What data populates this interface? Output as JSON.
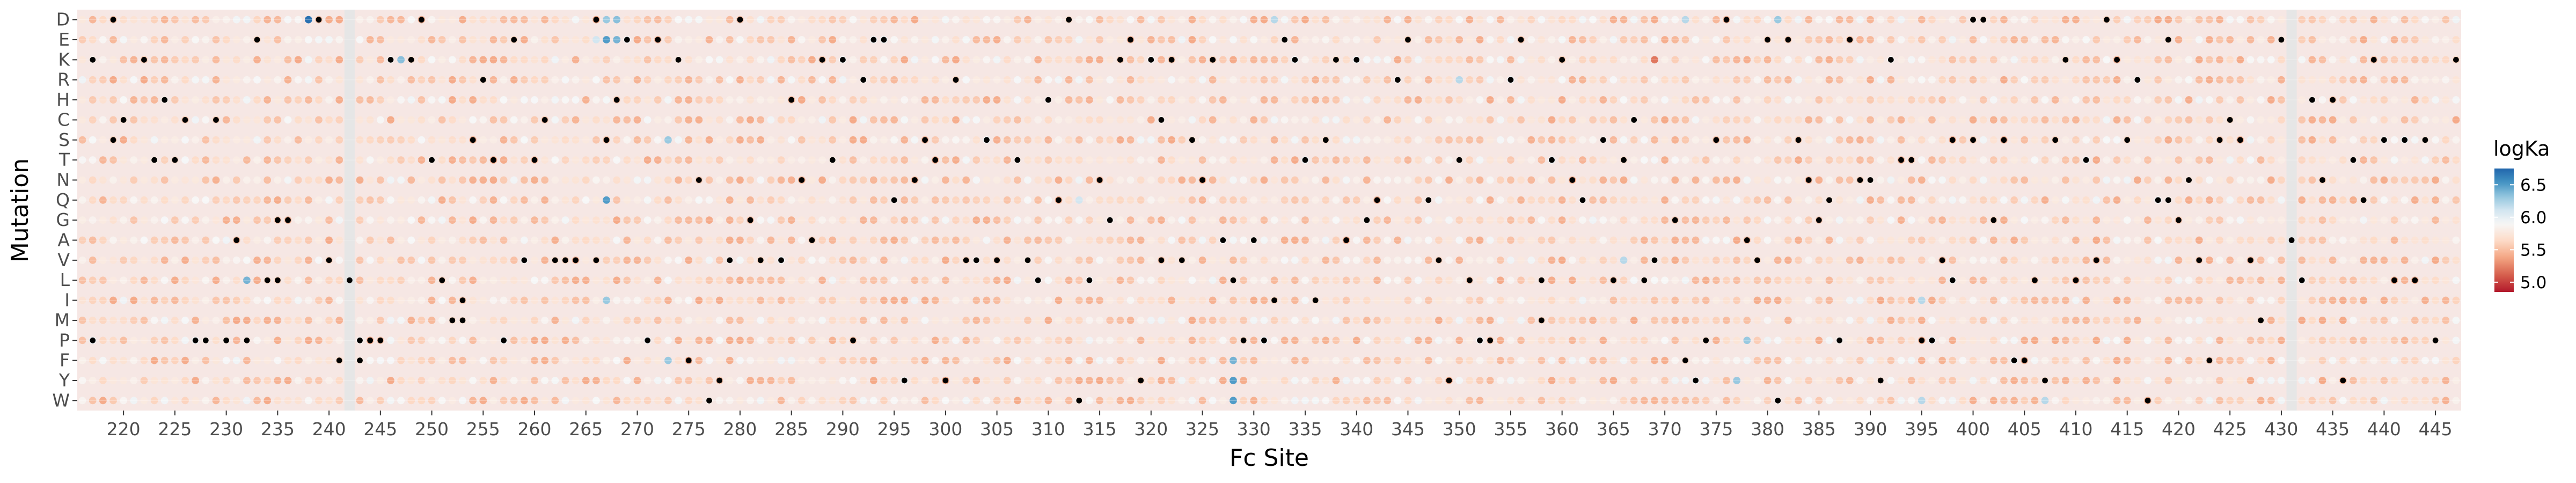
{
  "chart_data": {
    "type": "heatmap",
    "xlabel": "Fc Site",
    "ylabel": "Mutation",
    "x_range": [
      216,
      447
    ],
    "x_ticks": [
      220,
      225,
      230,
      235,
      240,
      245,
      250,
      255,
      260,
      265,
      270,
      275,
      280,
      285,
      290,
      295,
      300,
      305,
      310,
      315,
      320,
      325,
      330,
      335,
      340,
      345,
      350,
      355,
      360,
      365,
      370,
      375,
      380,
      385,
      390,
      395,
      400,
      405,
      410,
      415,
      420,
      425,
      430,
      435,
      440,
      445
    ],
    "y_categories": [
      "D",
      "E",
      "K",
      "R",
      "H",
      "C",
      "S",
      "T",
      "N",
      "Q",
      "G",
      "A",
      "V",
      "L",
      "I",
      "M",
      "P",
      "F",
      "Y",
      "W"
    ],
    "grid": true,
    "background_value": 5.7,
    "missing_sites": [
      242,
      431
    ],
    "notable_cells": [
      {
        "site": 238,
        "mutation": "D",
        "logKa": 6.7
      },
      {
        "site": 267,
        "mutation": "D",
        "logKa": 6.3
      },
      {
        "site": 268,
        "mutation": "D",
        "logKa": 6.35
      },
      {
        "site": 267,
        "mutation": "E",
        "logKa": 6.5
      },
      {
        "site": 268,
        "mutation": "E",
        "logKa": 6.4
      },
      {
        "site": 266,
        "mutation": "E",
        "logKa": 6.1
      },
      {
        "site": 237,
        "mutation": "K",
        "logKa": 5.4
      },
      {
        "site": 247,
        "mutation": "K",
        "logKa": 6.35
      },
      {
        "site": 369,
        "mutation": "K",
        "logKa": 5.2
      },
      {
        "site": 273,
        "mutation": "S",
        "logKa": 6.3
      },
      {
        "site": 271,
        "mutation": "T",
        "logKa": 5.4
      },
      {
        "site": 267,
        "mutation": "Q",
        "logKa": 6.5
      },
      {
        "site": 232,
        "mutation": "L",
        "logKa": 6.4
      },
      {
        "site": 276,
        "mutation": "I",
        "logKa": 5.4
      },
      {
        "site": 267,
        "mutation": "I",
        "logKa": 6.3
      },
      {
        "site": 273,
        "mutation": "F",
        "logKa": 6.3
      },
      {
        "site": 328,
        "mutation": "F",
        "logKa": 6.4
      },
      {
        "site": 328,
        "mutation": "Y",
        "logKa": 6.5
      },
      {
        "site": 328,
        "mutation": "W",
        "logKa": 6.5
      },
      {
        "site": 378,
        "mutation": "P",
        "logKa": 6.3
      },
      {
        "site": 332,
        "mutation": "D",
        "logKa": 6.2
      },
      {
        "site": 381,
        "mutation": "D",
        "logKa": 6.3
      },
      {
        "site": 372,
        "mutation": "D",
        "logKa": 6.2
      },
      {
        "site": 366,
        "mutation": "V",
        "logKa": 6.2
      },
      {
        "site": 395,
        "mutation": "W",
        "logKa": 6.2
      },
      {
        "site": 407,
        "mutation": "W",
        "logKa": 6.2
      },
      {
        "site": 377,
        "mutation": "Y",
        "logKa": 6.3
      },
      {
        "site": 395,
        "mutation": "I",
        "logKa": 6.2
      },
      {
        "site": 350,
        "mutation": "R",
        "logKa": 6.2
      },
      {
        "site": 313,
        "mutation": "Q",
        "logKa": 6.1
      }
    ],
    "wildtype_markers": [
      {
        "site": 219,
        "mutation": "D"
      },
      {
        "site": 239,
        "mutation": "D"
      },
      {
        "site": 249,
        "mutation": "D"
      },
      {
        "site": 266,
        "mutation": "D"
      },
      {
        "site": 280,
        "mutation": "D"
      },
      {
        "site": 312,
        "mutation": "D"
      },
      {
        "site": 376,
        "mutation": "D"
      },
      {
        "site": 400,
        "mutation": "D"
      },
      {
        "site": 401,
        "mutation": "D"
      },
      {
        "site": 413,
        "mutation": "D"
      },
      {
        "site": 233,
        "mutation": "E"
      },
      {
        "site": 258,
        "mutation": "E"
      },
      {
        "site": 269,
        "mutation": "E"
      },
      {
        "site": 272,
        "mutation": "E"
      },
      {
        "site": 293,
        "mutation": "E"
      },
      {
        "site": 294,
        "mutation": "E"
      },
      {
        "site": 318,
        "mutation": "E"
      },
      {
        "site": 333,
        "mutation": "E"
      },
      {
        "site": 345,
        "mutation": "E"
      },
      {
        "site": 356,
        "mutation": "E"
      },
      {
        "site": 380,
        "mutation": "E"
      },
      {
        "site": 382,
        "mutation": "E"
      },
      {
        "site": 388,
        "mutation": "E"
      },
      {
        "site": 419,
        "mutation": "E"
      },
      {
        "site": 430,
        "mutation": "E"
      },
      {
        "site": 217,
        "mutation": "K"
      },
      {
        "site": 222,
        "mutation": "K"
      },
      {
        "site": 246,
        "mutation": "K"
      },
      {
        "site": 248,
        "mutation": "K"
      },
      {
        "site": 274,
        "mutation": "K"
      },
      {
        "site": 288,
        "mutation": "K"
      },
      {
        "site": 290,
        "mutation": "K"
      },
      {
        "site": 317,
        "mutation": "K"
      },
      {
        "site": 320,
        "mutation": "K"
      },
      {
        "site": 322,
        "mutation": "K"
      },
      {
        "site": 326,
        "mutation": "K"
      },
      {
        "site": 334,
        "mutation": "K"
      },
      {
        "site": 338,
        "mutation": "K"
      },
      {
        "site": 340,
        "mutation": "K"
      },
      {
        "site": 360,
        "mutation": "K"
      },
      {
        "site": 392,
        "mutation": "K"
      },
      {
        "site": 409,
        "mutation": "K"
      },
      {
        "site": 414,
        "mutation": "K"
      },
      {
        "site": 439,
        "mutation": "K"
      },
      {
        "site": 447,
        "mutation": "K"
      },
      {
        "site": 255,
        "mutation": "R"
      },
      {
        "site": 292,
        "mutation": "R"
      },
      {
        "site": 301,
        "mutation": "R"
      },
      {
        "site": 344,
        "mutation": "R"
      },
      {
        "site": 355,
        "mutation": "R"
      },
      {
        "site": 416,
        "mutation": "R"
      },
      {
        "site": 224,
        "mutation": "H"
      },
      {
        "site": 268,
        "mutation": "H"
      },
      {
        "site": 285,
        "mutation": "H"
      },
      {
        "site": 310,
        "mutation": "H"
      },
      {
        "site": 433,
        "mutation": "H"
      },
      {
        "site": 435,
        "mutation": "H"
      },
      {
        "site": 220,
        "mutation": "C"
      },
      {
        "site": 226,
        "mutation": "C"
      },
      {
        "site": 229,
        "mutation": "C"
      },
      {
        "site": 261,
        "mutation": "C"
      },
      {
        "site": 321,
        "mutation": "C"
      },
      {
        "site": 367,
        "mutation": "C"
      },
      {
        "site": 425,
        "mutation": "C"
      },
      {
        "site": 219,
        "mutation": "S"
      },
      {
        "site": 254,
        "mutation": "S"
      },
      {
        "site": 267,
        "mutation": "S"
      },
      {
        "site": 298,
        "mutation": "S"
      },
      {
        "site": 304,
        "mutation": "S"
      },
      {
        "site": 324,
        "mutation": "S"
      },
      {
        "site": 337,
        "mutation": "S"
      },
      {
        "site": 364,
        "mutation": "S"
      },
      {
        "site": 375,
        "mutation": "S"
      },
      {
        "site": 383,
        "mutation": "S"
      },
      {
        "site": 398,
        "mutation": "S"
      },
      {
        "site": 400,
        "mutation": "S"
      },
      {
        "site": 403,
        "mutation": "S"
      },
      {
        "site": 408,
        "mutation": "S"
      },
      {
        "site": 415,
        "mutation": "S"
      },
      {
        "site": 424,
        "mutation": "S"
      },
      {
        "site": 426,
        "mutation": "S"
      },
      {
        "site": 440,
        "mutation": "S"
      },
      {
        "site": 442,
        "mutation": "S"
      },
      {
        "site": 444,
        "mutation": "S"
      },
      {
        "site": 223,
        "mutation": "T"
      },
      {
        "site": 225,
        "mutation": "T"
      },
      {
        "site": 250,
        "mutation": "T"
      },
      {
        "site": 256,
        "mutation": "T"
      },
      {
        "site": 260,
        "mutation": "T"
      },
      {
        "site": 289,
        "mutation": "T"
      },
      {
        "site": 299,
        "mutation": "T"
      },
      {
        "site": 307,
        "mutation": "T"
      },
      {
        "site": 335,
        "mutation": "T"
      },
      {
        "site": 350,
        "mutation": "T"
      },
      {
        "site": 359,
        "mutation": "T"
      },
      {
        "site": 366,
        "mutation": "T"
      },
      {
        "site": 393,
        "mutation": "T"
      },
      {
        "site": 394,
        "mutation": "T"
      },
      {
        "site": 411,
        "mutation": "T"
      },
      {
        "site": 437,
        "mutation": "T"
      },
      {
        "site": 276,
        "mutation": "N"
      },
      {
        "site": 286,
        "mutation": "N"
      },
      {
        "site": 297,
        "mutation": "N"
      },
      {
        "site": 315,
        "mutation": "N"
      },
      {
        "site": 325,
        "mutation": "N"
      },
      {
        "site": 361,
        "mutation": "N"
      },
      {
        "site": 384,
        "mutation": "N"
      },
      {
        "site": 389,
        "mutation": "N"
      },
      {
        "site": 390,
        "mutation": "N"
      },
      {
        "site": 421,
        "mutation": "N"
      },
      {
        "site": 434,
        "mutation": "N"
      },
      {
        "site": 295,
        "mutation": "Q"
      },
      {
        "site": 311,
        "mutation": "Q"
      },
      {
        "site": 342,
        "mutation": "Q"
      },
      {
        "site": 347,
        "mutation": "Q"
      },
      {
        "site": 362,
        "mutation": "Q"
      },
      {
        "site": 386,
        "mutation": "Q"
      },
      {
        "site": 418,
        "mutation": "Q"
      },
      {
        "site": 419,
        "mutation": "Q"
      },
      {
        "site": 438,
        "mutation": "Q"
      },
      {
        "site": 235,
        "mutation": "G"
      },
      {
        "site": 236,
        "mutation": "G"
      },
      {
        "site": 281,
        "mutation": "G"
      },
      {
        "site": 316,
        "mutation": "G"
      },
      {
        "site": 341,
        "mutation": "G"
      },
      {
        "site": 371,
        "mutation": "G"
      },
      {
        "site": 385,
        "mutation": "G"
      },
      {
        "site": 402,
        "mutation": "G"
      },
      {
        "site": 420,
        "mutation": "G"
      },
      {
        "site": 231,
        "mutation": "A"
      },
      {
        "site": 287,
        "mutation": "A"
      },
      {
        "site": 327,
        "mutation": "A"
      },
      {
        "site": 330,
        "mutation": "A"
      },
      {
        "site": 339,
        "mutation": "A"
      },
      {
        "site": 378,
        "mutation": "A"
      },
      {
        "site": 431,
        "mutation": "A"
      },
      {
        "site": 240,
        "mutation": "V"
      },
      {
        "site": 259,
        "mutation": "V"
      },
      {
        "site": 262,
        "mutation": "V"
      },
      {
        "site": 263,
        "mutation": "V"
      },
      {
        "site": 264,
        "mutation": "V"
      },
      {
        "site": 266,
        "mutation": "V"
      },
      {
        "site": 279,
        "mutation": "V"
      },
      {
        "site": 282,
        "mutation": "V"
      },
      {
        "site": 284,
        "mutation": "V"
      },
      {
        "site": 302,
        "mutation": "V"
      },
      {
        "site": 303,
        "mutation": "V"
      },
      {
        "site": 305,
        "mutation": "V"
      },
      {
        "site": 308,
        "mutation": "V"
      },
      {
        "site": 321,
        "mutation": "V"
      },
      {
        "site": 323,
        "mutation": "V"
      },
      {
        "site": 348,
        "mutation": "V"
      },
      {
        "site": 369,
        "mutation": "V"
      },
      {
        "site": 379,
        "mutation": "V"
      },
      {
        "site": 397,
        "mutation": "V"
      },
      {
        "site": 412,
        "mutation": "V"
      },
      {
        "site": 422,
        "mutation": "V"
      },
      {
        "site": 427,
        "mutation": "V"
      },
      {
        "site": 234,
        "mutation": "L"
      },
      {
        "site": 235,
        "mutation": "L"
      },
      {
        "site": 242,
        "mutation": "L"
      },
      {
        "site": 251,
        "mutation": "L"
      },
      {
        "site": 309,
        "mutation": "L"
      },
      {
        "site": 314,
        "mutation": "L"
      },
      {
        "site": 328,
        "mutation": "L"
      },
      {
        "site": 351,
        "mutation": "L"
      },
      {
        "site": 358,
        "mutation": "L"
      },
      {
        "site": 365,
        "mutation": "L"
      },
      {
        "site": 368,
        "mutation": "L"
      },
      {
        "site": 398,
        "mutation": "L"
      },
      {
        "site": 406,
        "mutation": "L"
      },
      {
        "site": 410,
        "mutation": "L"
      },
      {
        "site": 432,
        "mutation": "L"
      },
      {
        "site": 441,
        "mutation": "L"
      },
      {
        "site": 443,
        "mutation": "L"
      },
      {
        "site": 253,
        "mutation": "I"
      },
      {
        "site": 332,
        "mutation": "I"
      },
      {
        "site": 336,
        "mutation": "I"
      },
      {
        "site": 253,
        "mutation": "M"
      },
      {
        "site": 252,
        "mutation": "M"
      },
      {
        "site": 358,
        "mutation": "M"
      },
      {
        "site": 428,
        "mutation": "M"
      },
      {
        "site": 217,
        "mutation": "P"
      },
      {
        "site": 227,
        "mutation": "P"
      },
      {
        "site": 228,
        "mutation": "P"
      },
      {
        "site": 230,
        "mutation": "P"
      },
      {
        "site": 232,
        "mutation": "P"
      },
      {
        "site": 243,
        "mutation": "P"
      },
      {
        "site": 244,
        "mutation": "P"
      },
      {
        "site": 245,
        "mutation": "P"
      },
      {
        "site": 257,
        "mutation": "P"
      },
      {
        "site": 271,
        "mutation": "P"
      },
      {
        "site": 291,
        "mutation": "P"
      },
      {
        "site": 329,
        "mutation": "P"
      },
      {
        "site": 331,
        "mutation": "P"
      },
      {
        "site": 352,
        "mutation": "P"
      },
      {
        "site": 353,
        "mutation": "P"
      },
      {
        "site": 374,
        "mutation": "P"
      },
      {
        "site": 387,
        "mutation": "P"
      },
      {
        "site": 395,
        "mutation": "P"
      },
      {
        "site": 396,
        "mutation": "P"
      },
      {
        "site": 445,
        "mutation": "P"
      },
      {
        "site": 241,
        "mutation": "F"
      },
      {
        "site": 243,
        "mutation": "F"
      },
      {
        "site": 275,
        "mutation": "F"
      },
      {
        "site": 372,
        "mutation": "F"
      },
      {
        "site": 404,
        "mutation": "F"
      },
      {
        "site": 405,
        "mutation": "F"
      },
      {
        "site": 423,
        "mutation": "F"
      },
      {
        "site": 278,
        "mutation": "Y"
      },
      {
        "site": 296,
        "mutation": "Y"
      },
      {
        "site": 300,
        "mutation": "Y"
      },
      {
        "site": 319,
        "mutation": "Y"
      },
      {
        "site": 349,
        "mutation": "Y"
      },
      {
        "site": 373,
        "mutation": "Y"
      },
      {
        "site": 391,
        "mutation": "Y"
      },
      {
        "site": 407,
        "mutation": "Y"
      },
      {
        "site": 436,
        "mutation": "Y"
      },
      {
        "site": 277,
        "mutation": "W"
      },
      {
        "site": 313,
        "mutation": "W"
      },
      {
        "site": 381,
        "mutation": "W"
      },
      {
        "site": 417,
        "mutation": "W"
      }
    ],
    "legend": {
      "title": "logKa",
      "ticks": [
        5.0,
        5.5,
        6.0,
        6.5
      ],
      "range": [
        4.85,
        6.75
      ],
      "colors": [
        "#b2182b",
        "#d6604d",
        "#f4a582",
        "#fddbc7",
        "#f7f7f7",
        "#d1e5f0",
        "#92c5de",
        "#4393c3",
        "#2166ac"
      ],
      "midpoint": 5.9,
      "placement": "right"
    }
  }
}
